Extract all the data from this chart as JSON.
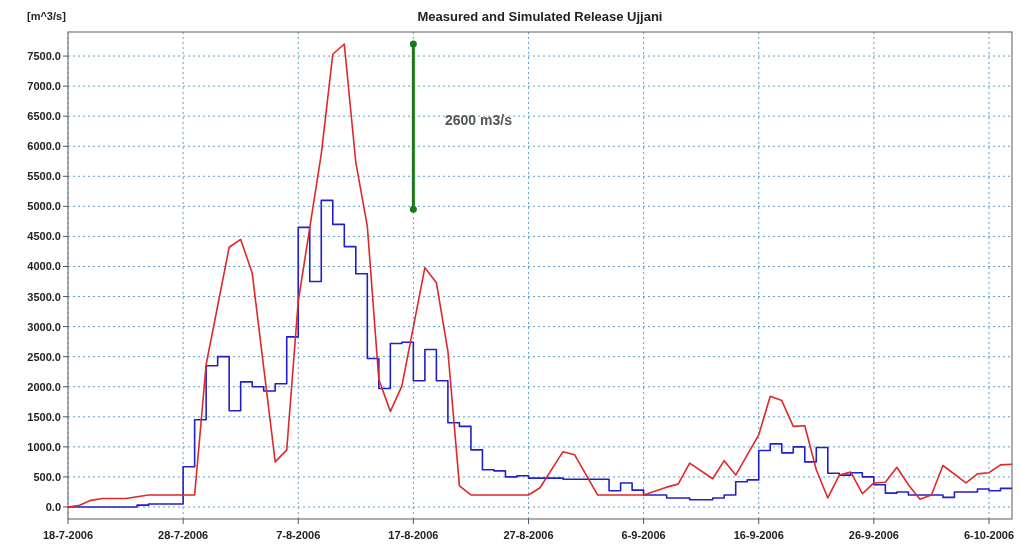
{
  "chart_data": {
    "type": "line",
    "title": "Measured and Simulated Release Ujjani",
    "ylabel": "[m^3/s]",
    "xlim": [
      "2006-07-18",
      "2006-10-08"
    ],
    "ylim": [
      -200,
      7900
    ],
    "xticks": [
      {
        "value": "2006-07-18",
        "label": "18-7-2006"
      },
      {
        "value": "2006-07-28",
        "label": "28-7-2006"
      },
      {
        "value": "2006-08-07",
        "label": "7-8-2006"
      },
      {
        "value": "2006-08-17",
        "label": "17-8-2006"
      },
      {
        "value": "2006-08-27",
        "label": "27-8-2006"
      },
      {
        "value": "2006-09-06",
        "label": "6-9-2006"
      },
      {
        "value": "2006-09-16",
        "label": "16-9-2006"
      },
      {
        "value": "2006-09-26",
        "label": "26-9-2006"
      },
      {
        "value": "2006-10-06",
        "label": "6-10-2006"
      }
    ],
    "yticks": [
      {
        "value": 0,
        "label": "0.0"
      },
      {
        "value": 500,
        "label": "500.0"
      },
      {
        "value": 1000,
        "label": "1000.0"
      },
      {
        "value": 1500,
        "label": "1500.0"
      },
      {
        "value": 2000,
        "label": "2000.0"
      },
      {
        "value": 2500,
        "label": "2500.0"
      },
      {
        "value": 3000,
        "label": "3000.0"
      },
      {
        "value": 3500,
        "label": "3500.0"
      },
      {
        "value": 4000,
        "label": "4000.0"
      },
      {
        "value": 4500,
        "label": "4500.0"
      },
      {
        "value": 5000,
        "label": "5000.0"
      },
      {
        "value": 5500,
        "label": "5500.0"
      },
      {
        "value": 6000,
        "label": "6000.0"
      },
      {
        "value": 6500,
        "label": "6500.0"
      },
      {
        "value": 7000,
        "label": "7000.0"
      },
      {
        "value": 7500,
        "label": "7500.0"
      }
    ],
    "grid": true,
    "annotations": [
      "2600 m3/s"
    ],
    "series": [
      {
        "type": "step",
        "color": "#2020c8",
        "x": [
          "2006-07-18",
          "2006-07-19",
          "2006-07-20",
          "2006-07-21",
          "2006-07-22",
          "2006-07-23",
          "2006-07-24",
          "2006-07-25",
          "2006-07-26",
          "2006-07-27",
          "2006-07-28",
          "2006-07-29",
          "2006-07-30",
          "2006-07-31",
          "2006-08-01",
          "2006-08-02",
          "2006-08-03",
          "2006-08-04",
          "2006-08-05",
          "2006-08-06",
          "2006-08-07",
          "2006-08-08",
          "2006-08-09",
          "2006-08-10",
          "2006-08-11",
          "2006-08-12",
          "2006-08-13",
          "2006-08-14",
          "2006-08-15",
          "2006-08-16",
          "2006-08-17",
          "2006-08-18",
          "2006-08-19",
          "2006-08-20",
          "2006-08-21",
          "2006-08-22",
          "2006-08-23",
          "2006-08-24",
          "2006-08-25",
          "2006-08-26",
          "2006-08-27",
          "2006-08-28",
          "2006-08-29",
          "2006-08-30",
          "2006-08-31",
          "2006-09-01",
          "2006-09-02",
          "2006-09-03",
          "2006-09-04",
          "2006-09-05",
          "2006-09-06",
          "2006-09-07",
          "2006-09-08",
          "2006-09-09",
          "2006-09-10",
          "2006-09-11",
          "2006-09-12",
          "2006-09-13",
          "2006-09-14",
          "2006-09-15",
          "2006-09-16",
          "2006-09-17",
          "2006-09-18",
          "2006-09-19",
          "2006-09-20",
          "2006-09-21",
          "2006-09-22",
          "2006-09-23",
          "2006-09-24",
          "2006-09-25",
          "2006-09-26",
          "2006-09-27",
          "2006-09-28",
          "2006-09-29",
          "2006-09-30",
          "2006-10-01",
          "2006-10-02",
          "2006-10-03",
          "2006-10-04",
          "2006-10-05",
          "2006-10-06",
          "2006-10-07",
          "2006-10-08"
        ],
        "values": [
          0,
          0,
          0,
          0,
          0,
          0,
          30,
          50,
          50,
          50,
          670,
          1450,
          2350,
          2500,
          1600,
          2080,
          2000,
          1930,
          2050,
          2830,
          4650,
          3750,
          5100,
          4700,
          4330,
          3880,
          2470,
          1970,
          2720,
          2740,
          2100,
          2620,
          2100,
          1400,
          1340,
          950,
          620,
          600,
          500,
          520,
          480,
          480,
          480,
          460,
          460,
          460,
          460,
          270,
          400,
          280,
          200,
          200,
          150,
          150,
          120,
          120,
          150,
          200,
          420,
          450,
          940,
          1050,
          900,
          1000,
          750,
          990,
          560,
          530,
          570,
          500,
          370,
          230,
          250,
          200,
          200,
          200,
          160,
          250,
          250,
          300,
          270,
          310,
          310
        ]
      },
      {
        "type": "line",
        "color": "#e02828",
        "x": [
          "2006-07-18",
          "2006-07-19",
          "2006-07-20",
          "2006-07-21",
          "2006-07-22",
          "2006-07-23",
          "2006-07-24",
          "2006-07-25",
          "2006-07-29",
          "2006-07-30",
          "2006-08-01",
          "2006-08-02",
          "2006-08-03",
          "2006-08-05",
          "2006-08-06",
          "2006-08-07",
          "2006-08-09",
          "2006-08-10",
          "2006-08-11",
          "2006-08-12",
          "2006-08-13",
          "2006-08-14",
          "2006-08-15",
          "2006-08-16",
          "2006-08-18",
          "2006-08-19",
          "2006-08-20",
          "2006-08-21",
          "2006-08-22",
          "2006-08-27",
          "2006-08-28",
          "2006-08-30",
          "2006-08-31",
          "2006-09-02",
          "2006-09-06",
          "2006-09-08",
          "2006-09-09",
          "2006-09-10",
          "2006-09-12",
          "2006-09-13",
          "2006-09-14",
          "2006-09-16",
          "2006-09-17",
          "2006-09-18",
          "2006-09-19",
          "2006-09-20",
          "2006-09-21",
          "2006-09-22",
          "2006-09-23",
          "2006-09-24",
          "2006-09-25",
          "2006-09-26",
          "2006-09-27",
          "2006-09-28",
          "2006-09-29",
          "2006-09-30",
          "2006-10-01",
          "2006-10-02",
          "2006-10-04",
          "2006-10-05",
          "2006-10-06",
          "2006-10-07",
          "2006-10-08"
        ],
        "values": [
          0,
          30,
          110,
          140,
          140,
          140,
          170,
          200,
          200,
          2370,
          4320,
          4450,
          3890,
          750,
          950,
          3420,
          5870,
          7530,
          7700,
          5730,
          4670,
          2120,
          1590,
          2010,
          3980,
          3730,
          2590,
          350,
          200,
          200,
          320,
          920,
          870,
          200,
          200,
          330,
          380,
          730,
          470,
          770,
          530,
          1200,
          1840,
          1770,
          1340,
          1350,
          620,
          150,
          530,
          580,
          220,
          400,
          410,
          660,
          370,
          130,
          200,
          690,
          400,
          550,
          570,
          700,
          710
        ]
      },
      {
        "color": "#1a7a1a",
        "marker": "circle",
        "x": [
          "2006-08-17",
          "2006-08-17"
        ],
        "values": [
          4950,
          7700
        ]
      }
    ]
  }
}
